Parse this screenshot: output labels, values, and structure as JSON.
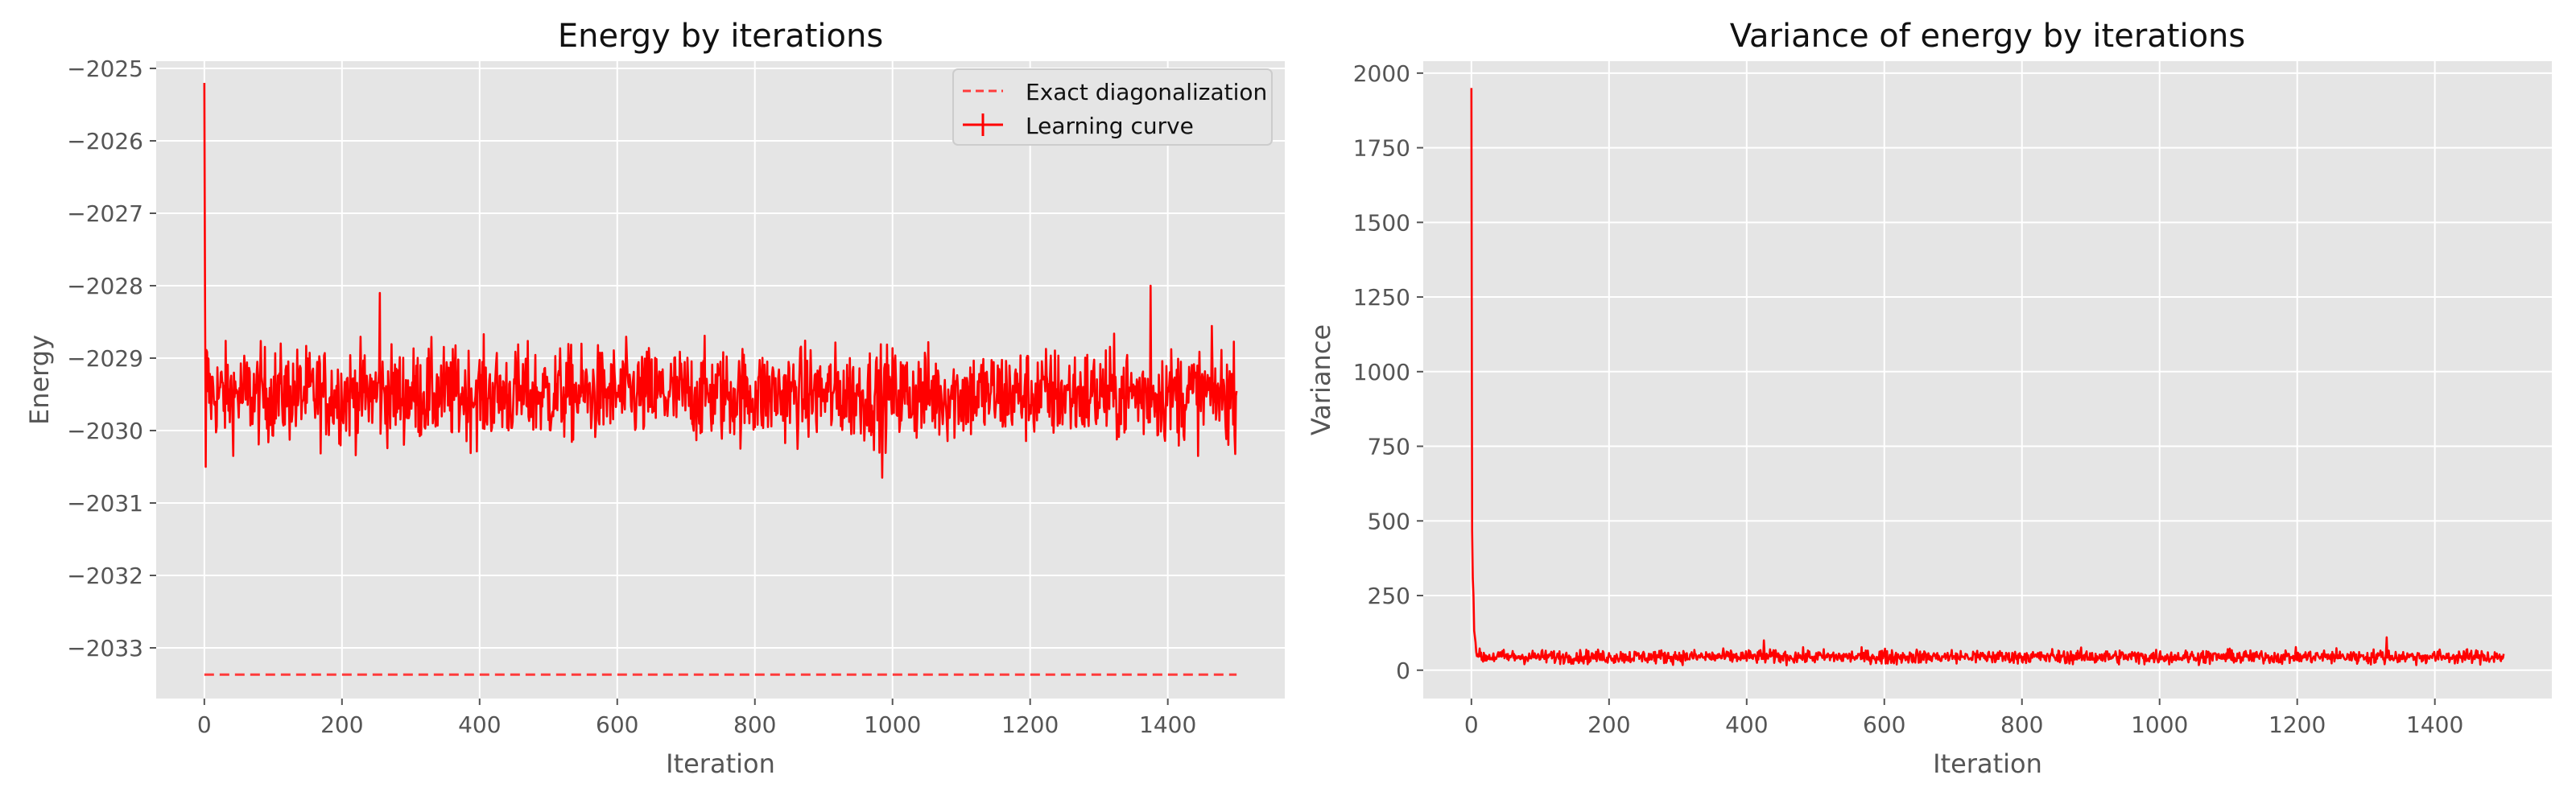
{
  "chart_data": [
    {
      "type": "line",
      "title": "Energy by iterations",
      "xlabel": "Iteration",
      "ylabel": "Energy",
      "xlim": [
        -70,
        1570
      ],
      "ylim": [
        -2033.7,
        -2024.9
      ],
      "xticks": [
        0,
        200,
        400,
        600,
        800,
        1000,
        1200,
        1400
      ],
      "xtick_labels": [
        "0",
        "200",
        "400",
        "600",
        "800",
        "1000",
        "1200",
        "1400"
      ],
      "yticks": [
        -2033,
        -2032,
        -2031,
        -2030,
        -2029,
        -2028,
        -2027,
        -2026,
        -2025
      ],
      "ytick_labels": [
        "−2033",
        "−2032",
        "−2031",
        "−2030",
        "−2029",
        "−2028",
        "−2027",
        "−2026",
        "−2025"
      ],
      "grid": true,
      "legend_position": "top-right",
      "series": [
        {
          "name": "Exact diagonalization",
          "color": "#ff3b3b",
          "style": "dashed",
          "x": [
            0,
            1500
          ],
          "y": [
            -2033.37,
            -2033.37
          ]
        },
        {
          "name": "Learning curve",
          "color": "#ff0000",
          "style": "solid",
          "x_start": 0,
          "x_end": 1500,
          "points_count": 1501,
          "summary": {
            "initial_peak": -2025.2,
            "steady_mean": -2029.5,
            "steady_min": -2030.7,
            "steady_max": -2028.0
          },
          "highlights": [
            [
              0,
              -2025.2
            ],
            [
              2,
              -2030.5
            ],
            [
              255,
              -2028.1
            ],
            [
              985,
              -2030.65
            ],
            [
              1375,
              -2028.0
            ]
          ]
        }
      ]
    },
    {
      "type": "line",
      "title": "Variance of energy by iterations",
      "xlabel": "Iteration",
      "ylabel": "Variance",
      "xlim": [
        -70,
        1570
      ],
      "ylim": [
        -95,
        2040
      ],
      "xticks": [
        0,
        200,
        400,
        600,
        800,
        1000,
        1200,
        1400
      ],
      "xtick_labels": [
        "0",
        "200",
        "400",
        "600",
        "800",
        "1000",
        "1200",
        "1400"
      ],
      "yticks": [
        0,
        250,
        500,
        750,
        1000,
        1250,
        1500,
        1750,
        2000
      ],
      "ytick_labels": [
        "0",
        "250",
        "500",
        "750",
        "1000",
        "1250",
        "1500",
        "1750",
        "2000"
      ],
      "grid": true,
      "series": [
        {
          "color": "#ff0000",
          "style": "solid",
          "x_start": 0,
          "x_end": 1500,
          "points_count": 1501,
          "summary": {
            "initial_peak": 1950,
            "steady_mean": 45,
            "steady_min": 15,
            "steady_max": 110
          },
          "highlights": [
            [
              0,
              1950
            ],
            [
              3,
              250
            ],
            [
              10,
              45
            ],
            [
              425,
              100
            ],
            [
              1330,
              110
            ]
          ]
        }
      ]
    }
  ]
}
